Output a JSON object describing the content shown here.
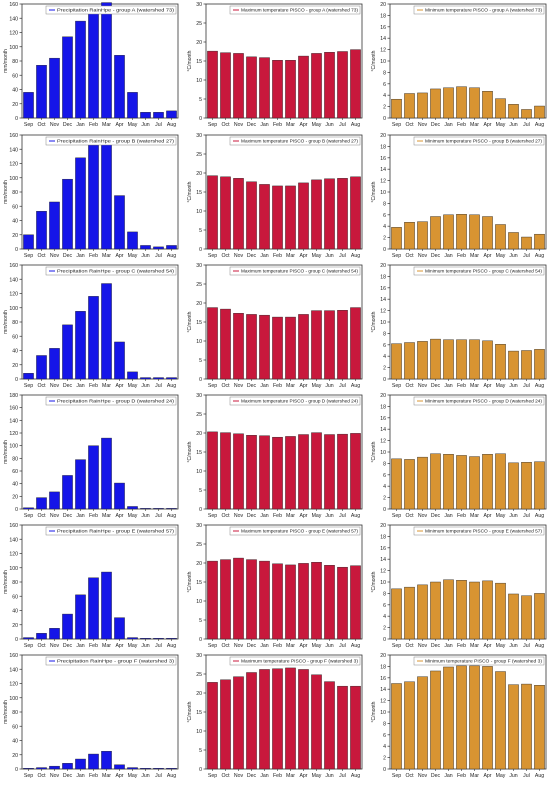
{
  "months": [
    "Sep",
    "Oct",
    "Nov",
    "Dec",
    "Jan",
    "Feb",
    "Mar",
    "Apr",
    "May",
    "Jun",
    "Jul",
    "Aug"
  ],
  "colors": {
    "precip": "#1515e8",
    "tmax": "#c8183c",
    "tmin": "#d89432",
    "axis": "#333333",
    "legend_border": "#888888"
  },
  "chart_data": [
    {
      "type": "bar",
      "group": "A",
      "variable": "precip",
      "legend": "Precipitation RainHpe - group A (watershed 73)",
      "ylabel": "mm/month",
      "ylim": [
        0,
        160
      ],
      "yticks": [
        0,
        20,
        40,
        60,
        80,
        100,
        120,
        140,
        160
      ],
      "categories": [
        "Sep",
        "Oct",
        "Nov",
        "Dec",
        "Jan",
        "Feb",
        "Mar",
        "Apr",
        "May",
        "Jun",
        "Jul",
        "Aug"
      ],
      "values": [
        36,
        74,
        84,
        114,
        136,
        152,
        162,
        88,
        36,
        8,
        8,
        10
      ]
    },
    {
      "type": "bar",
      "group": "A",
      "variable": "tmax",
      "legend": "Maximum temperature PISCO - group A (watershed 73)",
      "ylabel": "°C/month",
      "ylim": [
        0,
        30
      ],
      "yticks": [
        0,
        5,
        10,
        15,
        20,
        25,
        30
      ],
      "categories": [
        "Sep",
        "Oct",
        "Nov",
        "Dec",
        "Jan",
        "Feb",
        "Mar",
        "Apr",
        "May",
        "Jun",
        "Jul",
        "Aug"
      ],
      "values": [
        17.6,
        17.2,
        17.0,
        16.1,
        15.9,
        15.2,
        15.2,
        16.3,
        17.0,
        17.3,
        17.5,
        18.0
      ]
    },
    {
      "type": "bar",
      "group": "A",
      "variable": "tmin",
      "legend": "Minimum temperature PISCO - group A (watershed 73)",
      "ylabel": "°C/month",
      "ylim": [
        0,
        20
      ],
      "yticks": [
        0,
        2,
        4,
        6,
        8,
        10,
        12,
        14,
        16,
        18,
        20
      ],
      "categories": [
        "Sep",
        "Oct",
        "Nov",
        "Dec",
        "Jan",
        "Feb",
        "Mar",
        "Apr",
        "May",
        "Jun",
        "Jul",
        "Aug"
      ],
      "values": [
        3.3,
        4.3,
        4.4,
        5.1,
        5.3,
        5.5,
        5.3,
        4.7,
        3.4,
        2.4,
        1.5,
        2.1
      ]
    },
    {
      "type": "bar",
      "group": "B",
      "variable": "precip",
      "legend": "Precipitation RainHpe - group B (watershed 27)",
      "ylabel": "mm/month",
      "ylim": [
        0,
        160
      ],
      "yticks": [
        0,
        20,
        40,
        60,
        80,
        100,
        120,
        140,
        160
      ],
      "categories": [
        "Sep",
        "Oct",
        "Nov",
        "Dec",
        "Jan",
        "Feb",
        "Mar",
        "Apr",
        "May",
        "Jun",
        "Jul",
        "Aug"
      ],
      "values": [
        20,
        53,
        66,
        98,
        128,
        146,
        151,
        75,
        24,
        5,
        3,
        5
      ]
    },
    {
      "type": "bar",
      "group": "B",
      "variable": "tmax",
      "legend": "Maximum temperature PISCO - group B (watershed 27)",
      "ylabel": "°C/month",
      "ylim": [
        0,
        30
      ],
      "yticks": [
        0,
        5,
        10,
        15,
        20,
        25,
        30
      ],
      "categories": [
        "Sep",
        "Oct",
        "Nov",
        "Dec",
        "Jan",
        "Feb",
        "Mar",
        "Apr",
        "May",
        "Jun",
        "Jul",
        "Aug"
      ],
      "values": [
        19.3,
        19.0,
        18.6,
        17.7,
        17.0,
        16.6,
        16.6,
        17.4,
        18.2,
        18.5,
        18.6,
        19.0
      ]
    },
    {
      "type": "bar",
      "group": "B",
      "variable": "tmin",
      "legend": "Minimum temperature PISCO - group B (watershed 27)",
      "ylabel": "°C/month",
      "ylim": [
        0,
        20
      ],
      "yticks": [
        0,
        2,
        4,
        6,
        8,
        10,
        12,
        14,
        16,
        18,
        20
      ],
      "categories": [
        "Sep",
        "Oct",
        "Nov",
        "Dec",
        "Jan",
        "Feb",
        "Mar",
        "Apr",
        "May",
        "Jun",
        "Jul",
        "Aug"
      ],
      "values": [
        3.8,
        4.7,
        4.8,
        5.7,
        6.0,
        6.1,
        6.0,
        5.7,
        4.3,
        2.9,
        2.1,
        2.6
      ]
    },
    {
      "type": "bar",
      "group": "C",
      "variable": "precip",
      "legend": "Precipitation RainHpe - group C (watershed 54)",
      "ylabel": "mm/month",
      "ylim": [
        0,
        160
      ],
      "yticks": [
        0,
        20,
        40,
        60,
        80,
        100,
        120,
        140,
        160
      ],
      "categories": [
        "Sep",
        "Oct",
        "Nov",
        "Dec",
        "Jan",
        "Feb",
        "Mar",
        "Apr",
        "May",
        "Jun",
        "Jul",
        "Aug"
      ],
      "values": [
        8,
        33,
        43,
        76,
        95,
        116,
        134,
        52,
        10,
        2,
        2,
        2
      ]
    },
    {
      "type": "bar",
      "group": "C",
      "variable": "tmax",
      "legend": "Maximum temperature PISCO - group C (watershed 54)",
      "ylabel": "°C/month",
      "ylim": [
        0,
        30
      ],
      "yticks": [
        0,
        5,
        10,
        15,
        20,
        25,
        30
      ],
      "categories": [
        "Sep",
        "Oct",
        "Nov",
        "Dec",
        "Jan",
        "Feb",
        "Mar",
        "Apr",
        "May",
        "Jun",
        "Jul",
        "Aug"
      ],
      "values": [
        18.8,
        18.4,
        17.3,
        17.0,
        16.8,
        16.3,
        16.3,
        17.0,
        18.0,
        18.0,
        18.1,
        18.8
      ]
    },
    {
      "type": "bar",
      "group": "C",
      "variable": "tmin",
      "legend": "Minimum temperature PISCO - group C (watershed 54)",
      "ylabel": "°C/month",
      "ylim": [
        0,
        20
      ],
      "yticks": [
        0,
        2,
        4,
        6,
        8,
        10,
        12,
        14,
        16,
        18,
        20
      ],
      "categories": [
        "Sep",
        "Oct",
        "Nov",
        "Dec",
        "Jan",
        "Feb",
        "Mar",
        "Apr",
        "May",
        "Jun",
        "Jul",
        "Aug"
      ],
      "values": [
        6.2,
        6.4,
        6.6,
        7.0,
        6.9,
        6.9,
        6.9,
        6.7,
        6.1,
        4.9,
        5.0,
        5.2
      ]
    },
    {
      "type": "bar",
      "group": "D",
      "variable": "precip",
      "legend": "Precipitation RainHpe - group D (watershed 24)",
      "ylabel": "mm/month",
      "ylim": [
        0,
        180
      ],
      "yticks": [
        0,
        20,
        40,
        60,
        80,
        100,
        120,
        140,
        160,
        180
      ],
      "categories": [
        "Sep",
        "Oct",
        "Nov",
        "Dec",
        "Jan",
        "Feb",
        "Mar",
        "Apr",
        "May",
        "Jun",
        "Jul",
        "Aug"
      ],
      "values": [
        2,
        18,
        27,
        53,
        78,
        100,
        112,
        41,
        4,
        1,
        1,
        1
      ]
    },
    {
      "type": "bar",
      "group": "D",
      "variable": "tmax",
      "legend": "Maximum temperature PISCO - group D (watershed 24)",
      "ylabel": "°C/month",
      "ylim": [
        0,
        30
      ],
      "yticks": [
        0,
        5,
        10,
        15,
        20,
        25,
        30
      ],
      "categories": [
        "Sep",
        "Oct",
        "Nov",
        "Dec",
        "Jan",
        "Feb",
        "Mar",
        "Apr",
        "May",
        "Jun",
        "Jul",
        "Aug"
      ],
      "values": [
        20.3,
        20.1,
        19.8,
        19.4,
        19.3,
        18.9,
        19.1,
        19.6,
        20.1,
        19.6,
        19.7,
        19.9
      ]
    },
    {
      "type": "bar",
      "group": "D",
      "variable": "tmin",
      "legend": "Minimum temperature PISCO - group D (watershed 24)",
      "ylabel": "°C/month",
      "ylim": [
        0,
        20
      ],
      "yticks": [
        0,
        2,
        4,
        6,
        8,
        10,
        12,
        14,
        16,
        18,
        20
      ],
      "categories": [
        "Sep",
        "Oct",
        "Nov",
        "Dec",
        "Jan",
        "Feb",
        "Mar",
        "Apr",
        "May",
        "Jun",
        "Jul",
        "Aug"
      ],
      "values": [
        8.8,
        8.7,
        9.1,
        9.7,
        9.6,
        9.4,
        9.2,
        9.6,
        9.7,
        8.1,
        8.2,
        8.3
      ]
    },
    {
      "type": "bar",
      "group": "E",
      "variable": "precip",
      "legend": "Precipitation RainHpe - group E (watershed 57)",
      "ylabel": "mm/month",
      "ylim": [
        0,
        160
      ],
      "yticks": [
        0,
        20,
        40,
        60,
        80,
        100,
        120,
        140,
        160
      ],
      "categories": [
        "Sep",
        "Oct",
        "Nov",
        "Dec",
        "Jan",
        "Feb",
        "Mar",
        "Apr",
        "May",
        "Jun",
        "Jul",
        "Aug"
      ],
      "values": [
        2,
        8,
        15,
        35,
        62,
        86,
        94,
        30,
        2,
        1,
        1,
        1
      ]
    },
    {
      "type": "bar",
      "group": "E",
      "variable": "tmax",
      "legend": "Maximum temperature PISCO - group E (watershed 57)",
      "ylabel": "°C/month",
      "ylim": [
        0,
        30
      ],
      "yticks": [
        0,
        5,
        10,
        15,
        20,
        25,
        30
      ],
      "categories": [
        "Sep",
        "Oct",
        "Nov",
        "Dec",
        "Jan",
        "Feb",
        "Mar",
        "Apr",
        "May",
        "Jun",
        "Jul",
        "Aug"
      ],
      "values": [
        20.5,
        20.9,
        21.3,
        20.9,
        20.5,
        19.8,
        19.5,
        19.9,
        20.2,
        19.4,
        18.9,
        19.3
      ]
    },
    {
      "type": "bar",
      "group": "E",
      "variable": "tmin",
      "legend": "Minimum temperature PISCO - group E (watershed 57)",
      "ylabel": "°C/month",
      "ylim": [
        0,
        20
      ],
      "yticks": [
        0,
        2,
        4,
        6,
        8,
        10,
        12,
        14,
        16,
        18,
        20
      ],
      "categories": [
        "Sep",
        "Oct",
        "Nov",
        "Dec",
        "Jan",
        "Feb",
        "Mar",
        "Apr",
        "May",
        "Jun",
        "Jul",
        "Aug"
      ],
      "values": [
        8.8,
        9.1,
        9.5,
        10.0,
        10.4,
        10.3,
        10.0,
        10.2,
        9.8,
        7.9,
        7.6,
        8.0
      ]
    },
    {
      "type": "bar",
      "group": "F",
      "variable": "precip",
      "legend": "Precipitation RainHpe - group F (watershed 3)",
      "ylabel": "mm/month",
      "ylim": [
        0,
        160
      ],
      "yticks": [
        0,
        20,
        40,
        60,
        80,
        100,
        120,
        140,
        160
      ],
      "categories": [
        "Sep",
        "Oct",
        "Nov",
        "Dec",
        "Jan",
        "Feb",
        "Mar",
        "Apr",
        "May",
        "Jun",
        "Jul",
        "Aug"
      ],
      "values": [
        1,
        2,
        4,
        8,
        14,
        21,
        25,
        6,
        2,
        1,
        1,
        1
      ]
    },
    {
      "type": "bar",
      "group": "F",
      "variable": "tmax",
      "legend": "Maximum temperature PISCO - group F (watershed 3)",
      "ylabel": "°C/month",
      "ylim": [
        0,
        30
      ],
      "yticks": [
        0,
        5,
        10,
        15,
        20,
        25,
        30
      ],
      "categories": [
        "Sep",
        "Oct",
        "Nov",
        "Dec",
        "Jan",
        "Feb",
        "Mar",
        "Apr",
        "May",
        "Jun",
        "Jul",
        "Aug"
      ],
      "values": [
        22.8,
        23.5,
        24.3,
        25.4,
        26.2,
        26.4,
        26.6,
        26.2,
        24.8,
        23.0,
        21.8,
        21.8
      ]
    },
    {
      "type": "bar",
      "group": "F",
      "variable": "tmin",
      "legend": "Minimum temperature PISCO - group F (watershed 3)",
      "ylabel": "°C/month",
      "ylim": [
        0,
        20
      ],
      "yticks": [
        0,
        2,
        4,
        6,
        8,
        10,
        12,
        14,
        16,
        18,
        20
      ],
      "categories": [
        "Sep",
        "Oct",
        "Nov",
        "Dec",
        "Jan",
        "Feb",
        "Mar",
        "Apr",
        "May",
        "Jun",
        "Jul",
        "Aug"
      ],
      "values": [
        15.0,
        15.3,
        16.2,
        17.2,
        17.9,
        18.1,
        18.1,
        18.0,
        17.1,
        14.8,
        14.9,
        14.7
      ]
    }
  ]
}
